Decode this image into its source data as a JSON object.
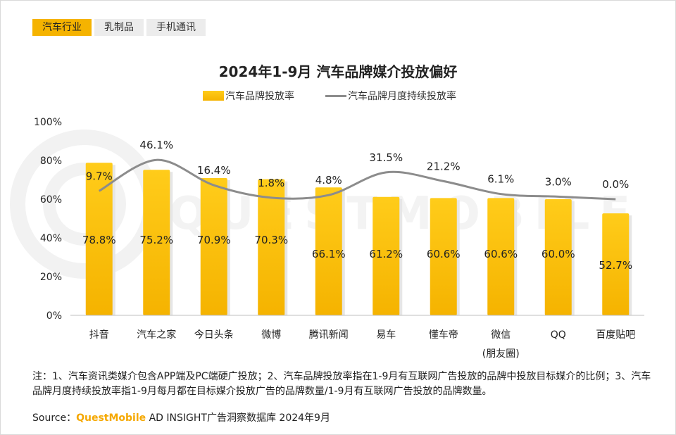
{
  "tabs": [
    "汽车行业",
    "乳制品",
    "手机通讯"
  ],
  "title": "2024年1-9月 汽车品牌媒介投放偏好",
  "legend": {
    "bar": "汽车品牌投放率",
    "line": "汽车品牌月度持续投放率"
  },
  "note": "注：1、汽车资讯类媒介包含APP端及PC端硬广投放；2、汽车品牌投放率指在1-9月有互联网广告投放的品牌中投放目标媒介的比例；3、汽车品牌月度持续投放率指1-9月每月都在目标媒介投放广告的品牌数量/1-9月有互联网广告投放的品牌数量。",
  "source": {
    "prefix": "Source：",
    "brand": "QuestMobile",
    "rest": " AD INSIGHT广告洞察数据库 2024年9月"
  },
  "watermark": "QUESTMOBILE",
  "colors": {
    "bar_top": "#ffcc1a",
    "bar_bottom": "#f5b300",
    "line": "#8c8c8c",
    "accent": "#f5b300"
  },
  "chart_data": {
    "type": "bar",
    "categories": [
      "抖音",
      "汽车之家",
      "今日头条",
      "微博",
      "腾讯新闻",
      "易车",
      "懂车帝",
      "微信\n(朋友圈)",
      "QQ",
      "百度贴吧"
    ],
    "ylim": [
      0,
      100
    ],
    "yticks": [
      "0%",
      "20%",
      "40%",
      "60%",
      "80%",
      "100%"
    ],
    "series": [
      {
        "name": "汽车品牌投放率",
        "kind": "bar",
        "values": [
          78.8,
          75.2,
          70.9,
          70.3,
          66.1,
          61.2,
          60.6,
          60.6,
          60.0,
          52.7
        ],
        "labels": [
          "78.8%",
          "75.2%",
          "70.9%",
          "70.3%",
          "66.1%",
          "61.2%",
          "60.6%",
          "60.6%",
          "60.0%",
          "52.7%"
        ]
      },
      {
        "name": "汽车品牌月度持续投放率",
        "kind": "line",
        "values": [
          9.7,
          46.1,
          16.4,
          1.8,
          4.8,
          31.5,
          21.2,
          6.1,
          3.0,
          0.0
        ],
        "labels": [
          "9.7%",
          "46.1%",
          "16.4%",
          "1.8%",
          "4.8%",
          "31.5%",
          "21.2%",
          "6.1%",
          "3.0%",
          "0.0%"
        ]
      }
    ]
  }
}
